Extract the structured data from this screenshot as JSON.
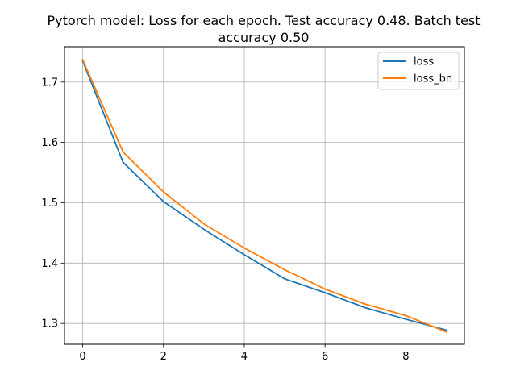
{
  "chart_data": {
    "type": "line",
    "title": "Pytorch model: Loss for each epoch. Test accuracy 0.48. Batch test accuracy 0.50",
    "title_lines": [
      "Pytorch model: Loss for each epoch. Test accuracy 0.48. Batch test",
      "accuracy 0.50"
    ],
    "xlabel": "",
    "ylabel": "",
    "x": [
      0,
      1,
      2,
      3,
      4,
      5,
      6,
      7,
      8,
      9
    ],
    "series": [
      {
        "name": "loss",
        "color": "#1f77b4",
        "values": [
          1.735,
          1.567,
          1.502,
          1.456,
          1.414,
          1.374,
          1.351,
          1.326,
          1.307,
          1.289
        ]
      },
      {
        "name": "loss_bn",
        "color": "#ff7f0e",
        "values": [
          1.737,
          1.584,
          1.518,
          1.465,
          1.425,
          1.389,
          1.357,
          1.332,
          1.313,
          1.286
        ]
      }
    ],
    "xlim": [
      -0.45,
      9.45
    ],
    "ylim": [
      1.2655,
      1.7585
    ],
    "xticks": [
      0,
      2,
      4,
      6,
      8
    ],
    "yticks": [
      1.3,
      1.4,
      1.5,
      1.6,
      1.7
    ],
    "xtick_labels": [
      "0",
      "2",
      "4",
      "6",
      "8"
    ],
    "ytick_labels": [
      "1.3",
      "1.4",
      "1.5",
      "1.6",
      "1.7"
    ],
    "grid": true,
    "legend_position": "top-right"
  }
}
